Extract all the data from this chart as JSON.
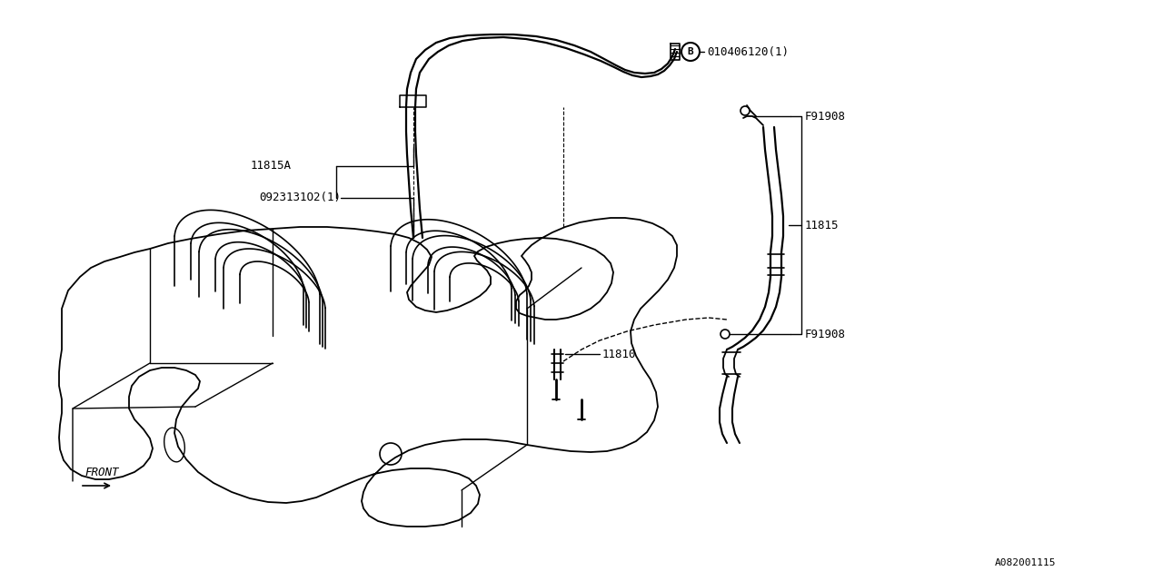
{
  "bg_color": "#ffffff",
  "fig_width": 12.8,
  "fig_height": 6.4,
  "dpi": 100,
  "labels": {
    "bolt_part": "010406120(1)",
    "circle_B": "B",
    "f91908_top": "F91908",
    "label_11815A": "11815A",
    "label_0923": "0923131O2(1)",
    "label_11815": "11815",
    "f91908_bot": "F91908",
    "label_11810": "11810",
    "front": "FRONT",
    "footer": "A082001115"
  }
}
